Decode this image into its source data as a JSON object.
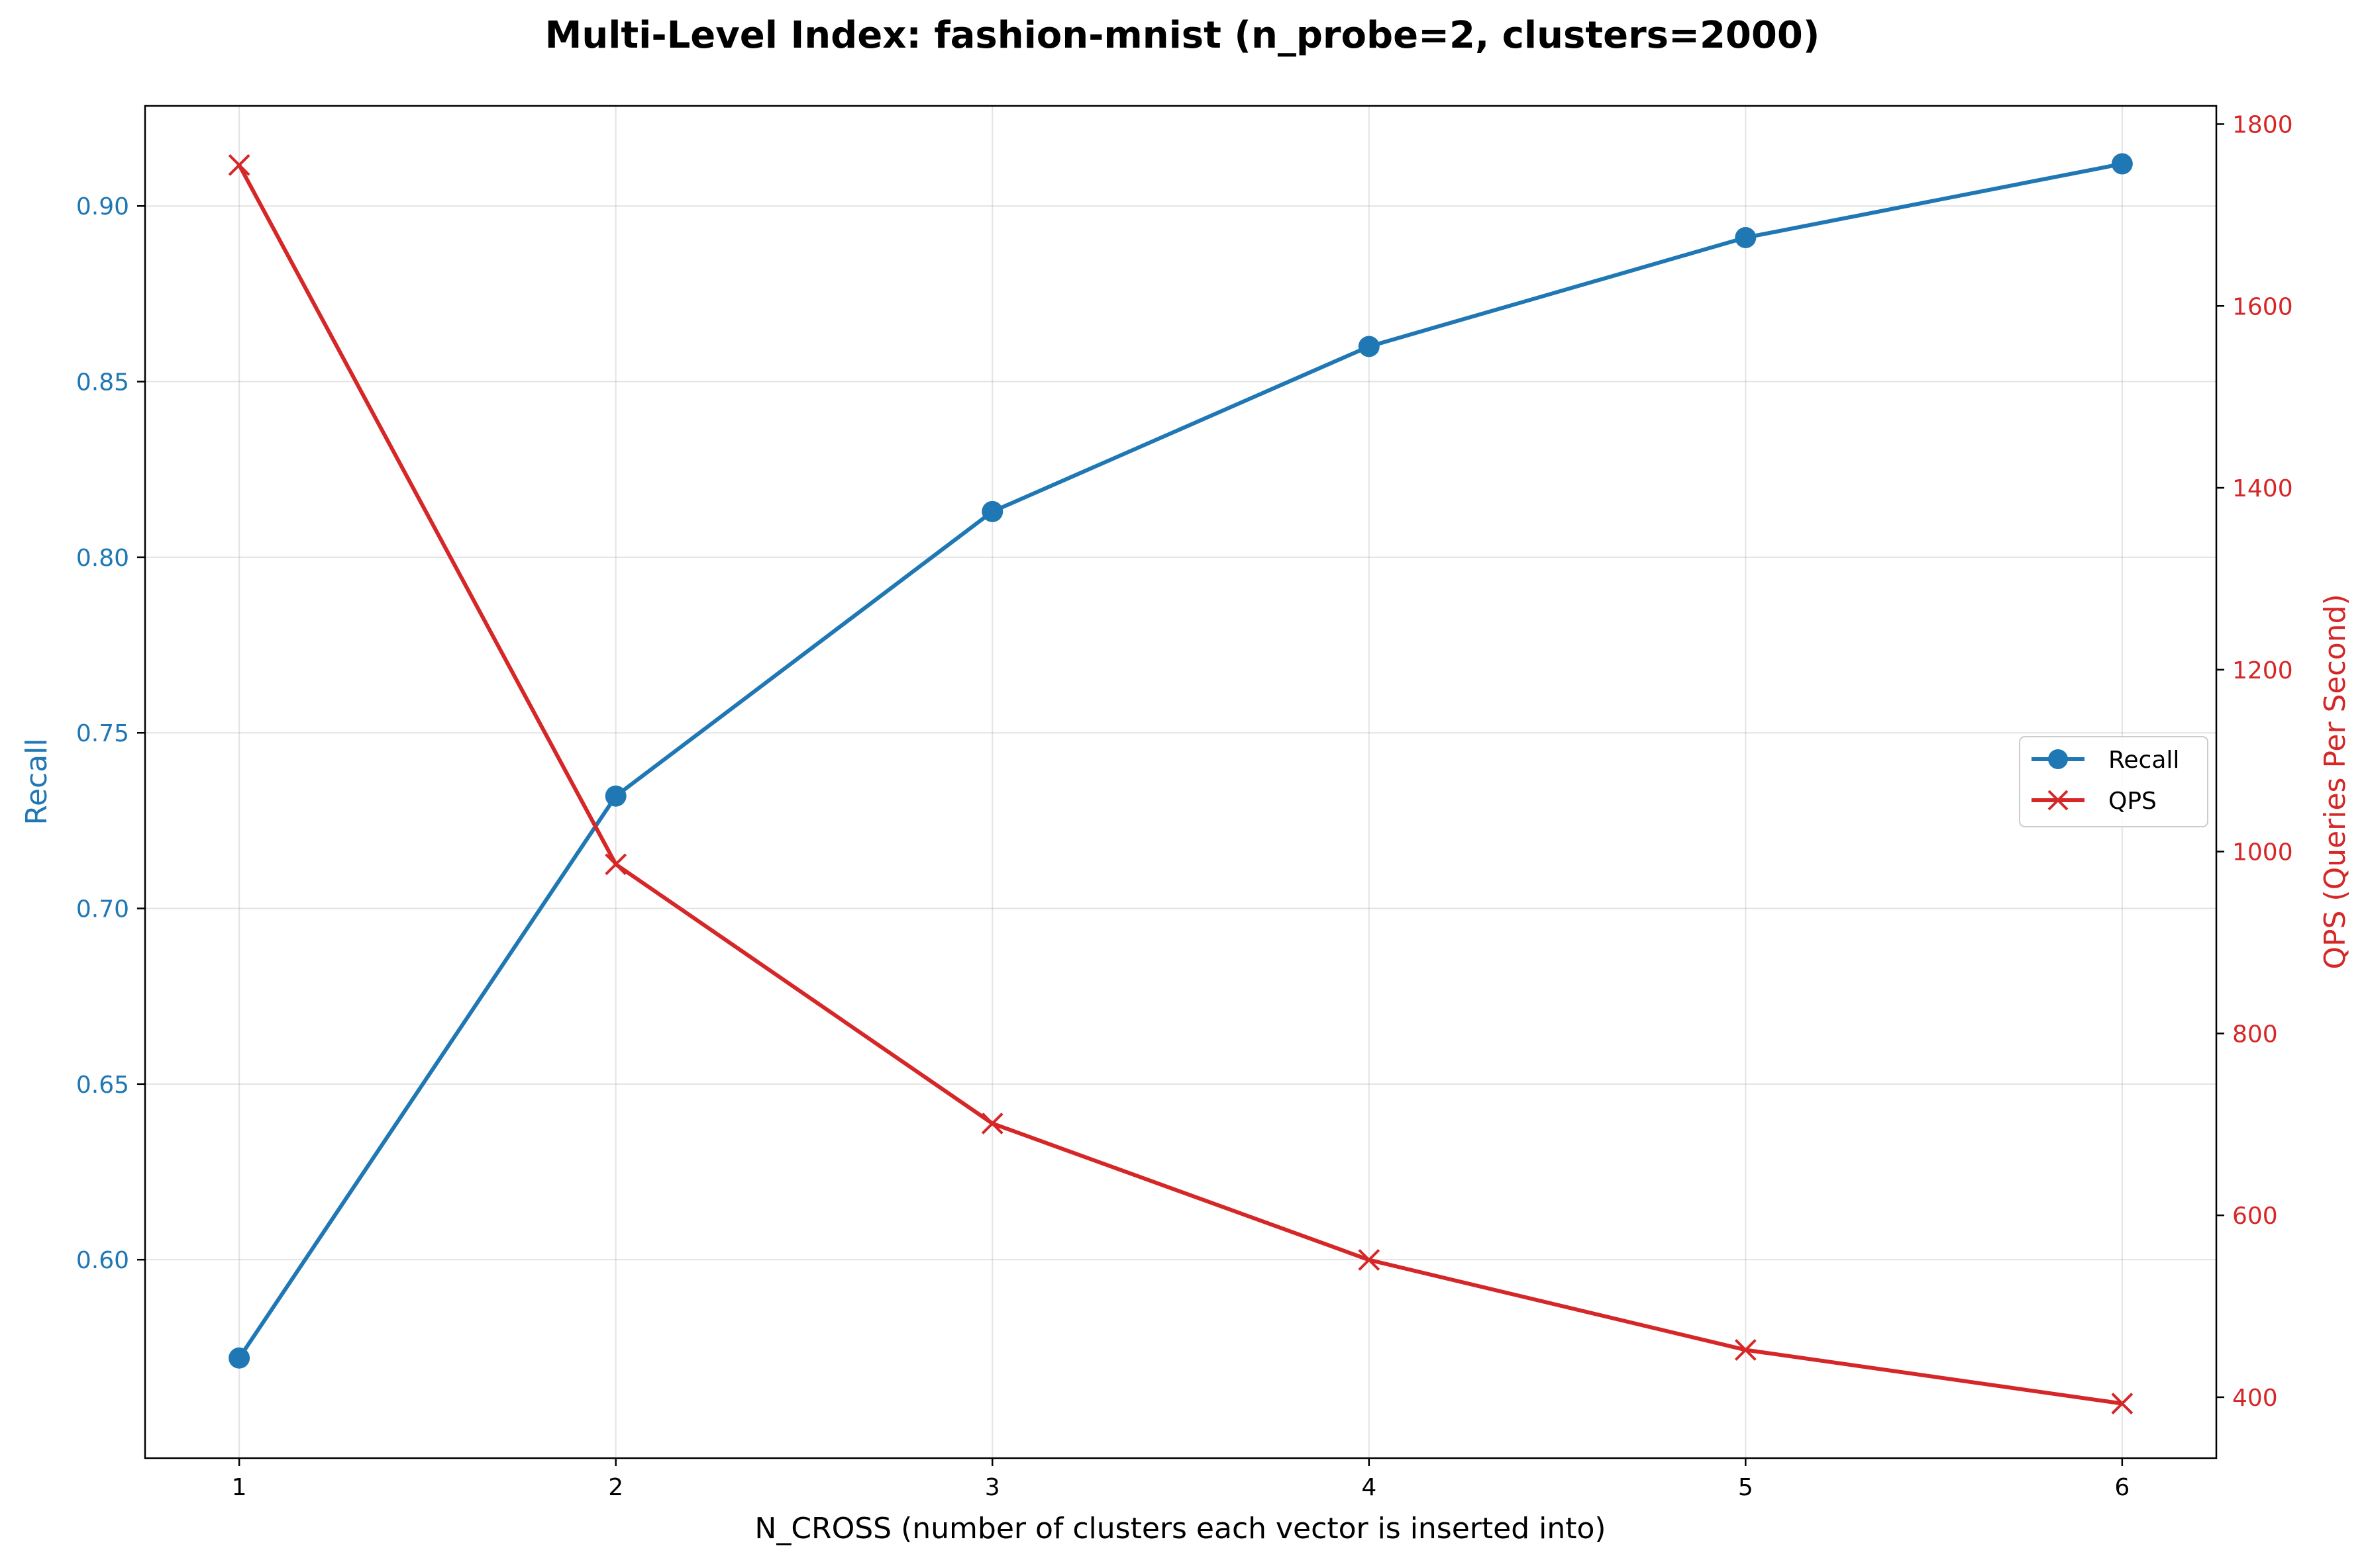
{
  "chart_data": {
    "type": "line",
    "title": "Multi-Level Index: fashion-mnist (n_probe=2, clusters=2000)",
    "xlabel": "N_CROSS (number of clusters each vector is inserted into)",
    "x": [
      1,
      2,
      3,
      4,
      5,
      6
    ],
    "xlim": [
      0.75,
      6.25
    ],
    "xticks": [
      "1",
      "2",
      "3",
      "4",
      "5",
      "6"
    ],
    "left_axis": {
      "label": "Recall",
      "color": "#1f77b4",
      "ylim": [
        0.5435,
        0.9285
      ],
      "ticks": [
        "0.60",
        "0.65",
        "0.70",
        "0.75",
        "0.80",
        "0.85",
        "0.90"
      ]
    },
    "right_axis": {
      "label": "QPS (Queries Per Second)",
      "color": "#d62728",
      "ylim": [
        333,
        1820
      ],
      "ticks": [
        "400",
        "600",
        "800",
        "1000",
        "1200",
        "1400",
        "1600",
        "1800"
      ]
    },
    "series": [
      {
        "name": "Recall",
        "axis": "left",
        "marker": "circle",
        "color": "#1f77b4",
        "values": [
          0.572,
          0.732,
          0.813,
          0.86,
          0.891,
          0.912
        ]
      },
      {
        "name": "QPS",
        "axis": "right",
        "marker": "x",
        "color": "#d62728",
        "values": [
          1755,
          986,
          701,
          551,
          452,
          393
        ]
      }
    ],
    "grid": true,
    "legend_position": "center-right"
  }
}
